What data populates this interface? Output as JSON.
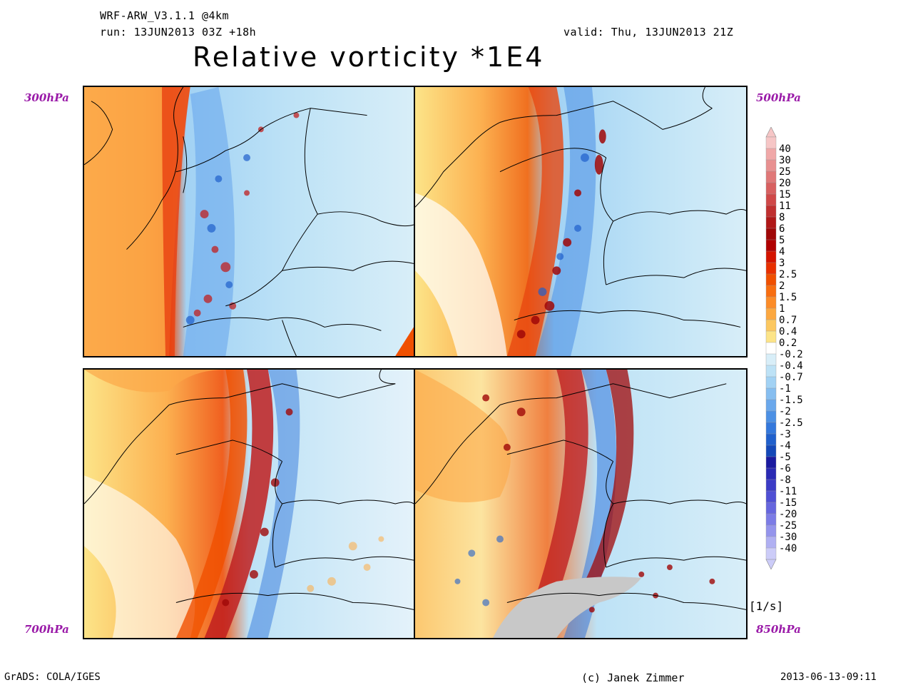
{
  "header": {
    "model": "WRF-ARW_V3.1.1 @4km",
    "run": "run: 13JUN2013 03Z +18h",
    "valid": "valid: Thu, 13JUN2013 21Z",
    "title": "Relative vorticity *1E4"
  },
  "panels": [
    {
      "id": "300",
      "label": "300hPa"
    },
    {
      "id": "500",
      "label": "500hPa"
    },
    {
      "id": "700",
      "label": "700hPa"
    },
    {
      "id": "850",
      "label": "850hPa"
    }
  ],
  "colorbar": {
    "units": "[1/s]",
    "levels": [
      "40",
      "30",
      "25",
      "20",
      "15",
      "11",
      "8",
      "6",
      "5",
      "4",
      "3",
      "2.5",
      "2",
      "1.5",
      "1",
      "0.7",
      "0.4",
      "0.2",
      "-0.2",
      "-0.4",
      "-0.7",
      "-1",
      "-1.5",
      "-2",
      "-2.5",
      "-3",
      "-4",
      "-5",
      "-6",
      "-8",
      "-11",
      "-15",
      "-20",
      "-25",
      "-30",
      "-40"
    ],
    "colors": [
      "#f6c6c6",
      "#f0a8a8",
      "#e89090",
      "#e07878",
      "#d86060",
      "#d04848",
      "#c03030",
      "#b01818",
      "#a00808",
      "#b00000",
      "#d41400",
      "#e83000",
      "#f05000",
      "#f86e10",
      "#fc8c28",
      "#fca840",
      "#fcc860",
      "#fce488",
      "#ffffff",
      "#d8eef8",
      "#bde2f6",
      "#a2d2f4",
      "#86bef0",
      "#6aa8ec",
      "#4c90e4",
      "#3478dc",
      "#2060cc",
      "#1448b8",
      "#1a1aa0",
      "#2a2ab4",
      "#3c3cc6",
      "#5050d4",
      "#6666de",
      "#7c7ce6",
      "#9494ec",
      "#b0b0f2",
      "#ccccf8"
    ]
  },
  "footer": {
    "left": "GrADS: COLA/IGES",
    "credit": "(c) Janek Zimmer",
    "date": "2013-06-13-09:11"
  }
}
